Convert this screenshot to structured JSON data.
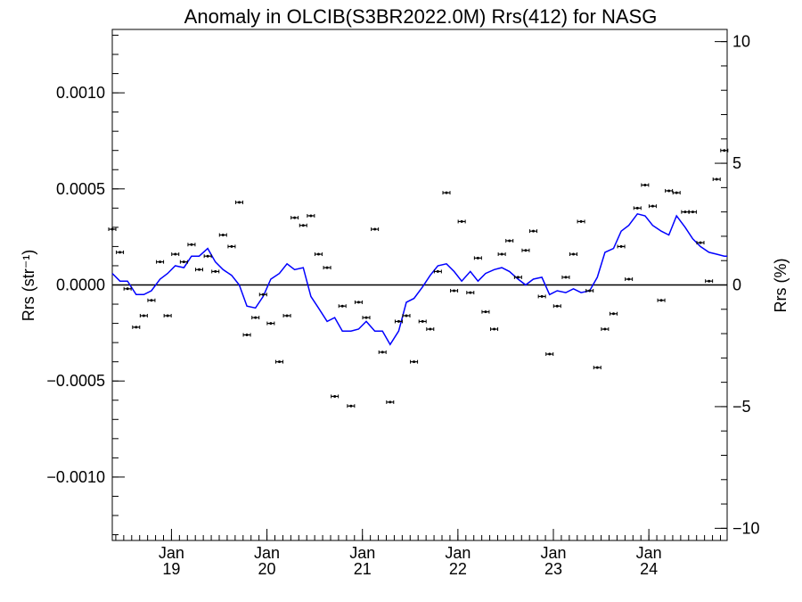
{
  "chart_data": {
    "type": "line",
    "title": "Anomaly in OLCIB(S3BR2022.0M) Rrs(412) for NASG",
    "ylabel_left": "Rrs (str⁻¹)",
    "ylabel_right": "Rrs (%)",
    "ylim_left": [
      -0.00133,
      0.00133
    ],
    "ylim_right": [
      -10.5,
      10.5
    ],
    "xlim": [
      2018.38,
      2024.82
    ],
    "y_ticks_left": [
      {
        "value": 0.001,
        "label": "0.0010"
      },
      {
        "value": 0.0005,
        "label": "0.0005"
      },
      {
        "value": 0.0,
        "label": "0.0000"
      },
      {
        "value": -0.0005,
        "label": "−0.0005"
      },
      {
        "value": -0.001,
        "label": "−0.0010"
      }
    ],
    "y_ticks_right": [
      {
        "value": 10,
        "label": "10"
      },
      {
        "value": 5,
        "label": "5"
      },
      {
        "value": 0,
        "label": "0"
      },
      {
        "value": -5,
        "label": "−5"
      },
      {
        "value": -10,
        "label": "−10"
      }
    ],
    "x_ticks": [
      {
        "value": 2019.0,
        "month": "Jan",
        "year": "19"
      },
      {
        "value": 2020.0,
        "month": "Jan",
        "year": "20"
      },
      {
        "value": 2021.0,
        "month": "Jan",
        "year": "21"
      },
      {
        "value": 2022.0,
        "month": "Jan",
        "year": "22"
      },
      {
        "value": 2023.0,
        "month": "Jan",
        "year": "23"
      },
      {
        "value": 2024.0,
        "month": "Jan",
        "year": "24"
      }
    ],
    "series": [
      {
        "kind": "points",
        "color": "#000000",
        "x": [
          2018.38,
          2018.46,
          2018.54,
          2018.63,
          2018.71,
          2018.79,
          2018.88,
          2018.96,
          2019.04,
          2019.13,
          2019.21,
          2019.29,
          2019.38,
          2019.46,
          2019.54,
          2019.63,
          2019.71,
          2019.79,
          2019.88,
          2019.96,
          2020.04,
          2020.13,
          2020.21,
          2020.29,
          2020.38,
          2020.46,
          2020.54,
          2020.63,
          2020.71,
          2020.79,
          2020.88,
          2020.96,
          2021.04,
          2021.13,
          2021.21,
          2021.29,
          2021.38,
          2021.46,
          2021.54,
          2021.63,
          2021.71,
          2021.79,
          2021.88,
          2021.96,
          2022.04,
          2022.13,
          2022.21,
          2022.29,
          2022.38,
          2022.46,
          2022.54,
          2022.63,
          2022.71,
          2022.79,
          2022.88,
          2022.96,
          2023.04,
          2023.13,
          2023.21,
          2023.29,
          2023.38,
          2023.46,
          2023.54,
          2023.63,
          2023.71,
          2023.79,
          2023.88,
          2023.96,
          2024.04,
          2024.13,
          2024.21,
          2024.29,
          2024.38,
          2024.46,
          2024.54,
          2024.63,
          2024.71,
          2024.79
        ],
        "y": [
          0.00029,
          0.00017,
          -2e-05,
          -0.00022,
          -0.00016,
          -8e-05,
          0.00012,
          -0.00016,
          0.00016,
          0.00012,
          0.00021,
          8e-05,
          0.00015,
          7e-05,
          0.00026,
          0.0002,
          0.00043,
          -0.00026,
          -0.00017,
          -5e-05,
          -0.0002,
          -0.0004,
          -0.00016,
          0.00035,
          0.00031,
          0.00036,
          0.00016,
          9e-05,
          -0.00058,
          -0.00011,
          -0.00063,
          -9e-05,
          -0.00017,
          0.00029,
          -0.00035,
          -0.00061,
          -0.00019,
          -0.00016,
          -0.0004,
          -0.00019,
          -0.00023,
          7e-05,
          0.00048,
          -3e-05,
          0.00033,
          -4e-05,
          0.00014,
          -0.00014,
          -0.00023,
          0.00016,
          0.00023,
          4e-05,
          0.00018,
          0.00028,
          -6e-05,
          -0.00036,
          -0.00011,
          4e-05,
          0.00016,
          0.00033,
          -3e-05,
          -0.00043,
          -0.00023,
          -0.00015,
          0.0002,
          3e-05,
          0.0004,
          0.00052,
          0.00041,
          -8e-05,
          0.00049,
          0.00048,
          0.00038,
          0.00038,
          0.00022,
          2e-05,
          0.00055,
          0.0007
        ]
      },
      {
        "kind": "line",
        "color": "#0000ff",
        "x": [
          2018.38,
          2018.46,
          2018.54,
          2018.63,
          2018.71,
          2018.79,
          2018.88,
          2018.96,
          2019.04,
          2019.13,
          2019.21,
          2019.29,
          2019.38,
          2019.46,
          2019.54,
          2019.63,
          2019.71,
          2019.79,
          2019.88,
          2019.96,
          2020.04,
          2020.13,
          2020.21,
          2020.29,
          2020.38,
          2020.46,
          2020.54,
          2020.63,
          2020.71,
          2020.79,
          2020.88,
          2020.96,
          2021.04,
          2021.13,
          2021.21,
          2021.29,
          2021.38,
          2021.46,
          2021.54,
          2021.63,
          2021.71,
          2021.79,
          2021.88,
          2021.96,
          2022.04,
          2022.13,
          2022.21,
          2022.29,
          2022.38,
          2022.46,
          2022.54,
          2022.63,
          2022.71,
          2022.79,
          2022.88,
          2022.96,
          2023.04,
          2023.13,
          2023.21,
          2023.29,
          2023.38,
          2023.46,
          2023.54,
          2023.63,
          2023.71,
          2023.79,
          2023.88,
          2023.96,
          2024.04,
          2024.13,
          2024.21,
          2024.29,
          2024.38,
          2024.46,
          2024.54,
          2024.63,
          2024.71,
          2024.79,
          2024.82
        ],
        "y": [
          6e-05,
          2e-05,
          2e-05,
          -5e-05,
          -5e-05,
          -3e-05,
          3e-05,
          6e-05,
          0.0001,
          9e-05,
          0.00015,
          0.00015,
          0.00019,
          0.00012,
          8e-05,
          5e-05,
          0.0,
          -0.00011,
          -0.00012,
          -6e-05,
          3e-05,
          6e-05,
          0.00011,
          8e-05,
          9e-05,
          -6e-05,
          -0.00012,
          -0.00019,
          -0.00017,
          -0.00024,
          -0.00024,
          -0.00023,
          -0.00019,
          -0.00024,
          -0.00024,
          -0.00031,
          -0.00024,
          -9e-05,
          -7e-05,
          -1e-05,
          5e-05,
          0.0001,
          0.00011,
          7e-05,
          2e-05,
          7e-05,
          2e-05,
          6e-05,
          8e-05,
          9e-05,
          7e-05,
          3e-05,
          0.0,
          3e-05,
          4e-05,
          -5e-05,
          -3e-05,
          -4e-05,
          -2e-05,
          -4e-05,
          -3e-05,
          4e-05,
          0.00017,
          0.00019,
          0.00028,
          0.00031,
          0.00037,
          0.00036,
          0.00031,
          0.00028,
          0.00026,
          0.00036,
          0.0003,
          0.00024,
          0.0002,
          0.00017,
          0.00016,
          0.00015,
          0.00015
        ]
      }
    ],
    "zero_line": true,
    "grid": false
  }
}
